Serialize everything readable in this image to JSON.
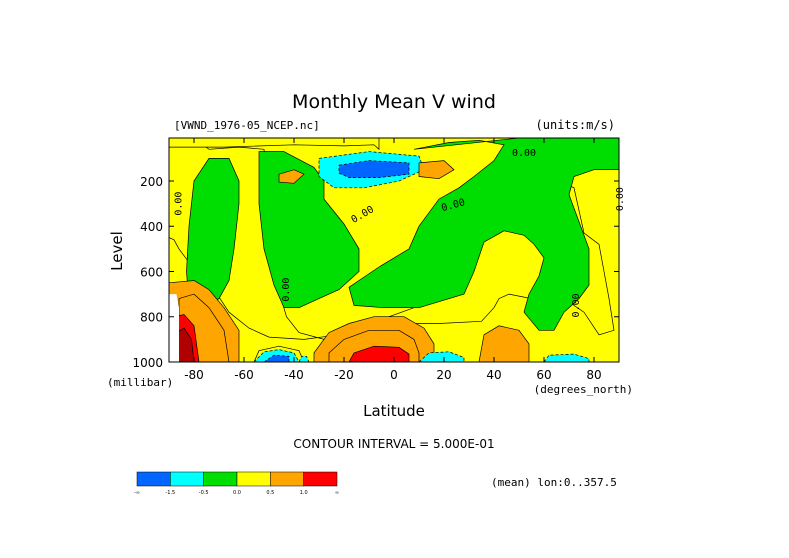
{
  "chart_data": {
    "type": "heatmap",
    "title": "Monthly Mean V wind",
    "dataset_label": "[VWND_1976-05_NCEP.nc]",
    "units_label": "(units:m/s)",
    "xlabel": "Latitude",
    "x_units": "(degrees_north)",
    "ylabel": "Level",
    "y_units": "(millibar)",
    "xlim": [
      -90,
      90
    ],
    "ylim": [
      1000,
      10
    ],
    "x_ticks": [
      {
        "value": -80,
        "label": "-80"
      },
      {
        "value": -60,
        "label": "-60"
      },
      {
        "value": -40,
        "label": "-40"
      },
      {
        "value": -20,
        "label": "-20"
      },
      {
        "value": 0,
        "label": "0"
      },
      {
        "value": 20,
        "label": "20"
      },
      {
        "value": 40,
        "label": "40"
      },
      {
        "value": 60,
        "label": "60"
      },
      {
        "value": 80,
        "label": "80"
      }
    ],
    "y_ticks": [
      {
        "value": 200,
        "label": "200"
      },
      {
        "value": 400,
        "label": "400"
      },
      {
        "value": 600,
        "label": "600"
      },
      {
        "value": 800,
        "label": "800"
      },
      {
        "value": 1000,
        "label": "1000"
      }
    ],
    "contour_interval_text": "CONTOUR INTERVAL = 5.000E-01",
    "mean_note": "(mean) lon:0..357.5",
    "colorbar": {
      "colors": [
        "#0066ff",
        "#00ffff",
        "#00dd00",
        "#ffff00",
        "#ffa500",
        "#ff0000"
      ],
      "labels": [
        "-∞",
        "-1.5",
        "-0.5",
        "0.0",
        "0.5",
        "1.0",
        "∞"
      ]
    },
    "contour_labels": [
      {
        "text": "0.00",
        "x": -85,
        "y": 300,
        "rotate": -90
      },
      {
        "text": "0.00",
        "x": -42,
        "y": 680,
        "rotate": -90
      },
      {
        "text": "0.00",
        "x": -12,
        "y": 360,
        "rotate": -30
      },
      {
        "text": "0.00",
        "x": 24,
        "y": 320,
        "rotate": -15
      },
      {
        "text": "0.00",
        "x": 52,
        "y": 90,
        "rotate": 0
      },
      {
        "text": "0.00",
        "x": 74,
        "y": 750,
        "rotate": -90
      },
      {
        "text": "0.00",
        "x": 92,
        "y": 280,
        "rotate": -90
      }
    ],
    "regions": [
      {
        "level": "neutral",
        "points": [
          [
            -90,
            10
          ],
          [
            90,
            10
          ],
          [
            90,
            1000
          ],
          [
            -90,
            1000
          ]
        ]
      },
      {
        "level": "weak_pos",
        "points": [
          [
            -74,
            60
          ],
          [
            -62,
            50
          ],
          [
            -52,
            60
          ],
          [
            -50,
            300
          ],
          [
            -48,
            500
          ],
          [
            -47,
            650
          ],
          [
            -43,
            800
          ],
          [
            -38,
            870
          ],
          [
            -28,
            900
          ],
          [
            -12,
            840
          ],
          [
            8,
            760
          ],
          [
            22,
            690
          ],
          [
            28,
            620
          ],
          [
            30,
            520
          ],
          [
            36,
            450
          ],
          [
            44,
            400
          ],
          [
            44,
            300
          ],
          [
            40,
            250
          ],
          [
            46,
            200
          ],
          [
            64,
            190
          ],
          [
            72,
            230
          ],
          [
            76,
            430
          ],
          [
            82,
            480
          ],
          [
            86,
            720
          ],
          [
            88,
            860
          ],
          [
            82,
            880
          ],
          [
            76,
            780
          ],
          [
            68,
            720
          ],
          [
            55,
            720
          ],
          [
            46,
            700
          ],
          [
            42,
            720
          ],
          [
            40,
            760
          ],
          [
            35,
            820
          ],
          [
            18,
            830
          ],
          [
            5,
            830
          ],
          [
            -10,
            840
          ],
          [
            -22,
            880
          ],
          [
            -36,
            900
          ],
          [
            -50,
            890
          ],
          [
            -58,
            850
          ],
          [
            -66,
            780
          ],
          [
            -72,
            680
          ],
          [
            -82,
            560
          ],
          [
            -86,
            500
          ],
          [
            -88,
            460
          ],
          [
            -90,
            450
          ],
          [
            -90,
            10
          ],
          [
            -80,
            10
          ]
        ]
      },
      {
        "level": "weak_pos",
        "points": [
          [
            48,
            20
          ],
          [
            58,
            25
          ],
          [
            60,
            60
          ],
          [
            44,
            45
          ]
        ]
      },
      {
        "level": "weak_pos",
        "points": [
          [
            -90,
            10
          ],
          [
            -6,
            10
          ],
          [
            -6,
            60
          ],
          [
            -8,
            40
          ],
          [
            -20,
            45
          ],
          [
            -40,
            40
          ],
          [
            -68,
            50
          ],
          [
            -90,
            50
          ]
        ]
      },
      {
        "level": "weak_neg",
        "points": [
          [
            -80,
            200
          ],
          [
            -74,
            100
          ],
          [
            -66,
            100
          ],
          [
            -62,
            200
          ],
          [
            -62,
            300
          ],
          [
            -64,
            500
          ],
          [
            -66,
            640
          ],
          [
            -70,
            720
          ],
          [
            -76,
            760
          ],
          [
            -82,
            740
          ],
          [
            -83,
            600
          ],
          [
            -82,
            400
          ]
        ]
      },
      {
        "level": "weak_neg",
        "points": [
          [
            -54,
            70
          ],
          [
            -44,
            70
          ],
          [
            -32,
            140
          ],
          [
            -28,
            200
          ],
          [
            -28,
            280
          ],
          [
            -20,
            390
          ],
          [
            -14,
            500
          ],
          [
            -14,
            600
          ],
          [
            -22,
            680
          ],
          [
            -30,
            720
          ],
          [
            -38,
            760
          ],
          [
            -44,
            760
          ],
          [
            -48,
            660
          ],
          [
            -52,
            500
          ],
          [
            -54,
            300
          ]
        ]
      },
      {
        "level": "weak_neg",
        "points": [
          [
            8,
            60
          ],
          [
            22,
            30
          ],
          [
            34,
            20
          ],
          [
            44,
            40
          ],
          [
            40,
            110
          ],
          [
            32,
            180
          ],
          [
            26,
            230
          ],
          [
            18,
            280
          ],
          [
            14,
            340
          ],
          [
            10,
            400
          ],
          [
            6,
            500
          ],
          [
            -6,
            580
          ],
          [
            -14,
            640
          ],
          [
            -18,
            670
          ],
          [
            -16,
            750
          ],
          [
            -4,
            760
          ],
          [
            10,
            760
          ],
          [
            28,
            700
          ],
          [
            32,
            600
          ],
          [
            36,
            470
          ],
          [
            44,
            420
          ],
          [
            52,
            440
          ],
          [
            56,
            480
          ],
          [
            60,
            540
          ],
          [
            58,
            620
          ],
          [
            54,
            700
          ],
          [
            52,
            780
          ],
          [
            58,
            860
          ],
          [
            64,
            860
          ],
          [
            68,
            780
          ],
          [
            74,
            720
          ],
          [
            78,
            660
          ],
          [
            78,
            500
          ],
          [
            74,
            380
          ],
          [
            70,
            260
          ],
          [
            72,
            180
          ],
          [
            80,
            150
          ],
          [
            90,
            150
          ],
          [
            90,
            10
          ],
          [
            50,
            10
          ]
        ]
      },
      {
        "level": "neg_15",
        "points": [
          [
            -30,
            100
          ],
          [
            -10,
            70
          ],
          [
            10,
            90
          ],
          [
            12,
            150
          ],
          [
            2,
            200
          ],
          [
            -12,
            230
          ],
          [
            -24,
            230
          ],
          [
            -30,
            180
          ]
        ]
      },
      {
        "level": "neg_max",
        "points": [
          [
            -22,
            130
          ],
          [
            -10,
            110
          ],
          [
            6,
            120
          ],
          [
            6,
            170
          ],
          [
            -6,
            185
          ],
          [
            -18,
            185
          ],
          [
            -22,
            165
          ]
        ]
      },
      {
        "level": "pos_05",
        "points": [
          [
            -46,
            170
          ],
          [
            -40,
            150
          ],
          [
            -36,
            170
          ],
          [
            -40,
            210
          ],
          [
            -46,
            205
          ]
        ]
      },
      {
        "level": "pos_05",
        "points": [
          [
            10,
            120
          ],
          [
            20,
            110
          ],
          [
            24,
            150
          ],
          [
            18,
            190
          ],
          [
            10,
            180
          ]
        ]
      },
      {
        "level": "pos_05",
        "points": [
          [
            -26,
            870
          ],
          [
            -18,
            830
          ],
          [
            -8,
            800
          ],
          [
            4,
            800
          ],
          [
            12,
            850
          ],
          [
            16,
            920
          ],
          [
            16,
            1000
          ],
          [
            -32,
            1000
          ],
          [
            -32,
            960
          ]
        ]
      },
      {
        "level": "pos_05",
        "points": [
          [
            -90,
            650
          ],
          [
            -80,
            640
          ],
          [
            -74,
            680
          ],
          [
            -68,
            760
          ],
          [
            -62,
            860
          ],
          [
            -62,
            1000
          ],
          [
            -90,
            1000
          ]
        ]
      },
      {
        "level": "pos_05",
        "points": [
          [
            36,
            880
          ],
          [
            42,
            840
          ],
          [
            50,
            860
          ],
          [
            54,
            920
          ],
          [
            54,
            1000
          ],
          [
            34,
            1000
          ]
        ]
      },
      {
        "level": "pos_10",
        "points": [
          [
            -86,
            720
          ],
          [
            -80,
            700
          ],
          [
            -74,
            760
          ],
          [
            -68,
            860
          ],
          [
            -66,
            1000
          ],
          [
            -86,
            1000
          ]
        ]
      },
      {
        "level": "pos_10",
        "points": [
          [
            -20,
            900
          ],
          [
            -10,
            860
          ],
          [
            2,
            860
          ],
          [
            8,
            900
          ],
          [
            10,
            960
          ],
          [
            10,
            1000
          ],
          [
            -26,
            1000
          ],
          [
            -26,
            960
          ]
        ]
      },
      {
        "level": "pos_max",
        "points": [
          [
            -16,
            960
          ],
          [
            -8,
            930
          ],
          [
            2,
            935
          ],
          [
            6,
            965
          ],
          [
            6,
            1000
          ],
          [
            -18,
            1000
          ]
        ]
      },
      {
        "level": "pos_max",
        "points": [
          [
            -88,
            800
          ],
          [
            -84,
            790
          ],
          [
            -80,
            840
          ],
          [
            -78,
            1000
          ],
          [
            -88,
            1000
          ]
        ]
      },
      {
        "level": "dark_red",
        "points": [
          [
            -87,
            870
          ],
          [
            -84,
            850
          ],
          [
            -81,
            900
          ],
          [
            -80,
            1000
          ],
          [
            -87,
            1000
          ]
        ]
      },
      {
        "level": "weak_pos",
        "points": [
          [
            -56,
            1000
          ],
          [
            -54,
            950
          ],
          [
            -46,
            930
          ],
          [
            -38,
            950
          ],
          [
            -36,
            1000
          ]
        ]
      },
      {
        "level": "neg_15",
        "points": [
          [
            -56,
            1000
          ],
          [
            -52,
            955
          ],
          [
            -46,
            945
          ],
          [
            -40,
            960
          ],
          [
            -38,
            1000
          ]
        ]
      },
      {
        "level": "neg_max",
        "points": [
          [
            -52,
            1000
          ],
          [
            -48,
            970
          ],
          [
            -42,
            975
          ],
          [
            -42,
            1000
          ]
        ]
      },
      {
        "level": "neg_15",
        "points": [
          [
            -38,
            1000
          ],
          [
            -37,
            975
          ],
          [
            -35,
            975
          ],
          [
            -34,
            1000
          ]
        ]
      },
      {
        "level": "neg_15",
        "points": [
          [
            10,
            1000
          ],
          [
            14,
            960
          ],
          [
            22,
            955
          ],
          [
            28,
            980
          ],
          [
            28,
            1000
          ]
        ]
      },
      {
        "level": "neg_15",
        "points": [
          [
            60,
            1000
          ],
          [
            62,
            970
          ],
          [
            72,
            965
          ],
          [
            78,
            985
          ],
          [
            78,
            1000
          ]
        ]
      },
      {
        "level": "missing",
        "points": [
          [
            -90,
            700
          ],
          [
            -87,
            700
          ],
          [
            -86,
            760
          ],
          [
            -86,
            1000
          ],
          [
            -90,
            1000
          ]
        ]
      }
    ]
  }
}
